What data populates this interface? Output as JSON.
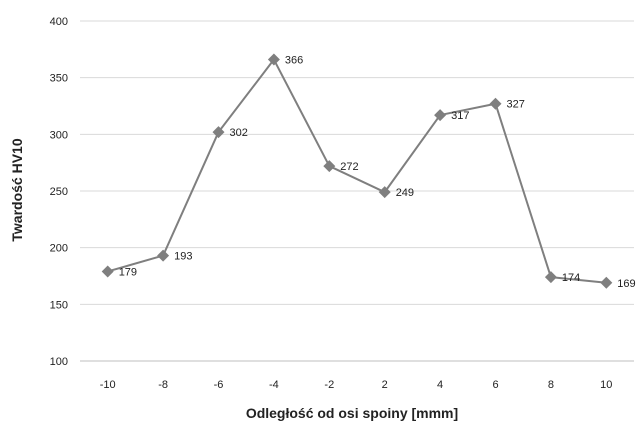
{
  "chart_data": {
    "type": "line",
    "title": "",
    "xlabel": "Odległość od osi spoiny [mmm]",
    "ylabel": "Twardość HV10",
    "categories": [
      "-10",
      "-8",
      "-6",
      "-4",
      "-2",
      "2",
      "4",
      "6",
      "8",
      "10"
    ],
    "series": [
      {
        "values": [
          179,
          193,
          302,
          366,
          272,
          249,
          317,
          327,
          174,
          169
        ],
        "color": "#7f7f7f",
        "marker": "diamond"
      }
    ],
    "ylim": [
      100,
      400
    ],
    "yticks": [
      100,
      150,
      200,
      250,
      300,
      350,
      400
    ],
    "grid": "horizontal",
    "legend": "none"
  }
}
